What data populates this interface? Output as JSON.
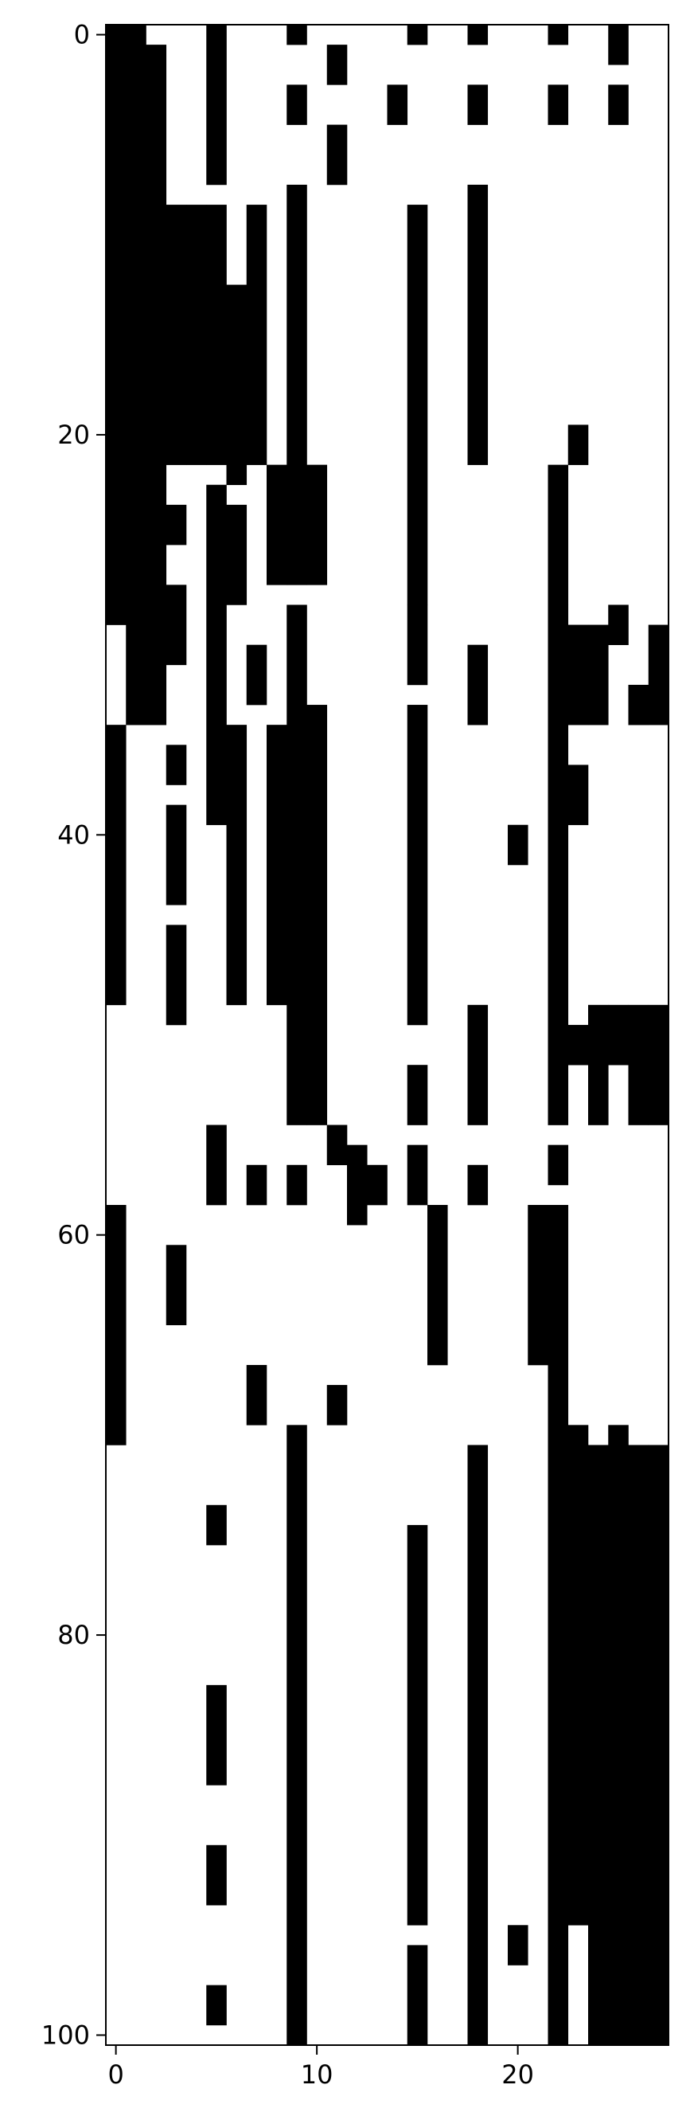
{
  "chart_data": {
    "type": "heatmap",
    "colormap": {
      "zero": "#ffffff",
      "one": "#000000"
    },
    "n_rows": 101,
    "n_cols": 28,
    "title": "",
    "xlabel": "",
    "ylabel": "",
    "xticks": [
      0,
      10,
      20
    ],
    "yticks": [
      0,
      20,
      40,
      60,
      80,
      100
    ],
    "xtick_labels": [
      "0",
      "10",
      "20"
    ],
    "ytick_labels": [
      "0",
      "20",
      "40",
      "60",
      "80",
      "100"
    ],
    "grid": false,
    "runs": [
      {
        "col": 0,
        "r0": 0,
        "r1": 29
      },
      {
        "col": 0,
        "r0": 35,
        "r1": 48
      },
      {
        "col": 0,
        "r0": 59,
        "r1": 70
      },
      {
        "col": 1,
        "r0": 0,
        "r1": 34
      },
      {
        "col": 2,
        "r0": 1,
        "r1": 34
      },
      {
        "col": 3,
        "r0": 9,
        "r1": 21
      },
      {
        "col": 3,
        "r0": 24,
        "r1": 25
      },
      {
        "col": 3,
        "r0": 28,
        "r1": 31
      },
      {
        "col": 3,
        "r0": 36,
        "r1": 37
      },
      {
        "col": 3,
        "r0": 39,
        "r1": 43
      },
      {
        "col": 3,
        "r0": 45,
        "r1": 49
      },
      {
        "col": 3,
        "r0": 61,
        "r1": 64
      },
      {
        "col": 4,
        "r0": 9,
        "r1": 21
      },
      {
        "col": 5,
        "r0": 0,
        "r1": 7
      },
      {
        "col": 5,
        "r0": 9,
        "r1": 21
      },
      {
        "col": 5,
        "r0": 23,
        "r1": 39
      },
      {
        "col": 5,
        "r0": 55,
        "r1": 58
      },
      {
        "col": 5,
        "r0": 74,
        "r1": 75
      },
      {
        "col": 5,
        "r0": 83,
        "r1": 87
      },
      {
        "col": 5,
        "r0": 91,
        "r1": 93
      },
      {
        "col": 5,
        "r0": 98,
        "r1": 99
      },
      {
        "col": 6,
        "r0": 13,
        "r1": 22
      },
      {
        "col": 6,
        "r0": 24,
        "r1": 28
      },
      {
        "col": 6,
        "r0": 35,
        "r1": 48
      },
      {
        "col": 7,
        "r0": 9,
        "r1": 21
      },
      {
        "col": 7,
        "r0": 31,
        "r1": 33
      },
      {
        "col": 7,
        "r0": 57,
        "r1": 58
      },
      {
        "col": 7,
        "r0": 67,
        "r1": 69
      },
      {
        "col": 8,
        "r0": 22,
        "r1": 27
      },
      {
        "col": 8,
        "r0": 35,
        "r1": 48
      },
      {
        "col": 9,
        "r0": 0,
        "r1": 0
      },
      {
        "col": 9,
        "r0": 3,
        "r1": 4
      },
      {
        "col": 9,
        "r0": 8,
        "r1": 27
      },
      {
        "col": 9,
        "r0": 29,
        "r1": 54
      },
      {
        "col": 9,
        "r0": 57,
        "r1": 58
      },
      {
        "col": 9,
        "r0": 70,
        "r1": 100
      },
      {
        "col": 10,
        "r0": 22,
        "r1": 27
      },
      {
        "col": 10,
        "r0": 34,
        "r1": 54
      },
      {
        "col": 11,
        "r0": 1,
        "r1": 2
      },
      {
        "col": 11,
        "r0": 5,
        "r1": 7
      },
      {
        "col": 11,
        "r0": 55,
        "r1": 56
      },
      {
        "col": 11,
        "r0": 68,
        "r1": 69
      },
      {
        "col": 12,
        "r0": 56,
        "r1": 59
      },
      {
        "col": 13,
        "r0": 57,
        "r1": 58
      },
      {
        "col": 14,
        "r0": 3,
        "r1": 4
      },
      {
        "col": 15,
        "r0": 0,
        "r1": 0
      },
      {
        "col": 15,
        "r0": 9,
        "r1": 28
      },
      {
        "col": 15,
        "r0": 29,
        "r1": 32
      },
      {
        "col": 15,
        "r0": 34,
        "r1": 49
      },
      {
        "col": 15,
        "r0": 52,
        "r1": 54
      },
      {
        "col": 15,
        "r0": 56,
        "r1": 58
      },
      {
        "col": 15,
        "r0": 75,
        "r1": 94
      },
      {
        "col": 15,
        "r0": 96,
        "r1": 100
      },
      {
        "col": 16,
        "r0": 59,
        "r1": 66
      },
      {
        "col": 18,
        "r0": 0,
        "r1": 0
      },
      {
        "col": 18,
        "r0": 3,
        "r1": 4
      },
      {
        "col": 18,
        "r0": 8,
        "r1": 21
      },
      {
        "col": 18,
        "r0": 31,
        "r1": 34
      },
      {
        "col": 18,
        "r0": 49,
        "r1": 54
      },
      {
        "col": 18,
        "r0": 57,
        "r1": 58
      },
      {
        "col": 18,
        "r0": 71,
        "r1": 100
      },
      {
        "col": 20,
        "r0": 40,
        "r1": 41
      },
      {
        "col": 20,
        "r0": 95,
        "r1": 96
      },
      {
        "col": 21,
        "r0": 59,
        "r1": 66
      },
      {
        "col": 22,
        "r0": 0,
        "r1": 0
      },
      {
        "col": 22,
        "r0": 3,
        "r1": 4
      },
      {
        "col": 22,
        "r0": 22,
        "r1": 28
      },
      {
        "col": 22,
        "r0": 29,
        "r1": 54
      },
      {
        "col": 22,
        "r0": 56,
        "r1": 57
      },
      {
        "col": 22,
        "r0": 59,
        "r1": 100
      },
      {
        "col": 23,
        "r0": 20,
        "r1": 21
      },
      {
        "col": 23,
        "r0": 30,
        "r1": 34
      },
      {
        "col": 23,
        "r0": 37,
        "r1": 39
      },
      {
        "col": 23,
        "r0": 50,
        "r1": 51
      },
      {
        "col": 23,
        "r0": 70,
        "r1": 94
      },
      {
        "col": 24,
        "r0": 30,
        "r1": 34
      },
      {
        "col": 24,
        "r0": 49,
        "r1": 54
      },
      {
        "col": 24,
        "r0": 71,
        "r1": 100
      },
      {
        "col": 25,
        "r0": 0,
        "r1": 1
      },
      {
        "col": 25,
        "r0": 3,
        "r1": 4
      },
      {
        "col": 25,
        "r0": 29,
        "r1": 30
      },
      {
        "col": 25,
        "r0": 49,
        "r1": 51
      },
      {
        "col": 25,
        "r0": 70,
        "r1": 100
      },
      {
        "col": 26,
        "r0": 33,
        "r1": 34
      },
      {
        "col": 26,
        "r0": 49,
        "r1": 54
      },
      {
        "col": 26,
        "r0": 71,
        "r1": 100
      },
      {
        "col": 27,
        "r0": 30,
        "r1": 34
      },
      {
        "col": 27,
        "r0": 49,
        "r1": 54
      },
      {
        "col": 27,
        "r0": 71,
        "r1": 100
      }
    ]
  }
}
